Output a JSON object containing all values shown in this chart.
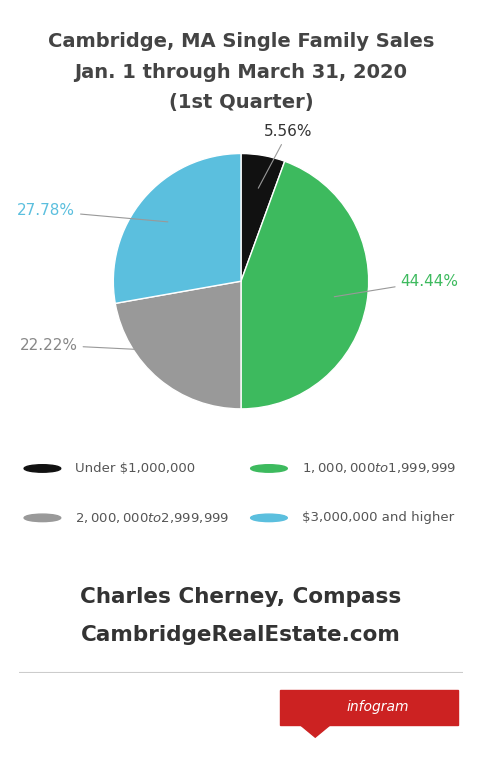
{
  "title_line1": "Cambridge, MA Single Family Sales",
  "title_line2": "Jan. 1 through March 31, 2020",
  "title_line3": "(1st Quarter)",
  "slices": [
    5.56,
    44.44,
    22.22,
    27.78
  ],
  "slice_colors": [
    "#111111",
    "#3dba5e",
    "#999999",
    "#5bbfde"
  ],
  "legend_row1": [
    {
      "color": "#111111",
      "label": "Under $1,000,000"
    },
    {
      "color": "#3dba5e",
      "label": "$1,000,000 to $1,999,999"
    }
  ],
  "legend_row2": [
    {
      "color": "#999999",
      "label": "$2,000,000 to $2,999,999"
    },
    {
      "color": "#5bbfde",
      "label": "$3,000,000 and higher"
    }
  ],
  "footer_line1": "Charles Cherney, Compass",
  "footer_line2": "CambridgeRealEstate.com",
  "startangle": 90,
  "background_color": "#ffffff",
  "title_color": "#444444",
  "footer_color": "#333333",
  "label_color_black": "#333333",
  "label_color_green": "#3dba5e",
  "label_color_gray": "#888888",
  "label_color_blue": "#5bbfde",
  "infogram_bg": "#cc2222",
  "infogram_text": "infogram",
  "legend_text_color": "#555555"
}
